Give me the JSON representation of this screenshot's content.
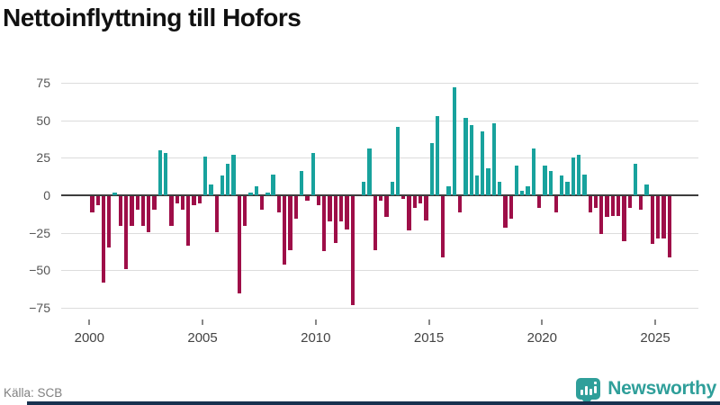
{
  "title": "Nettoinflyttning till Hofors",
  "source": "Källa: SCB",
  "brand": {
    "name": "Newsworthy",
    "color": "#2f9f9a"
  },
  "chart_data": {
    "type": "bar",
    "title": "Nettoinflyttning till Hofors",
    "xlabel": "",
    "ylabel": "",
    "frequency": "quarterly",
    "start_year": 2000,
    "start_quarter": 1,
    "x_tick_labels": [
      "2000",
      "2005",
      "2010",
      "2015",
      "2020",
      "2025"
    ],
    "y_ticks": [
      75,
      50,
      25,
      0,
      -25,
      -50,
      -75
    ],
    "ylim": [
      -80,
      80
    ],
    "grid": true,
    "legend": false,
    "positive_color": "#18a29d",
    "negative_color": "#9e0e48",
    "axis_color": "#3d3d3d",
    "values": [
      -11,
      -6,
      -58,
      -34,
      2,
      -20,
      -49,
      -20,
      -9,
      -20,
      -24,
      -9,
      30,
      28,
      -20,
      -5,
      -9,
      -33,
      -6,
      -5,
      26,
      7,
      -24,
      13,
      21,
      27,
      -65,
      -20,
      2,
      6,
      -9,
      2,
      14,
      -11,
      -46,
      -36,
      -15,
      16,
      -3,
      28,
      -6,
      -37,
      -17,
      -31,
      -17,
      -22,
      -73,
      0,
      9,
      31,
      -36,
      -3,
      -14,
      9,
      46,
      -2,
      -23,
      -8,
      -5,
      -16,
      35,
      53,
      -41,
      6,
      72,
      -11,
      52,
      47,
      13,
      43,
      18,
      48,
      9,
      -21,
      -15,
      20,
      3,
      6,
      31,
      -8,
      20,
      16,
      -11,
      13,
      9,
      25,
      27,
      14,
      -11,
      -8,
      -25,
      -14,
      -13,
      -13,
      -30,
      -8,
      21,
      -9,
      7,
      -32,
      -28,
      -28,
      -41
    ]
  }
}
